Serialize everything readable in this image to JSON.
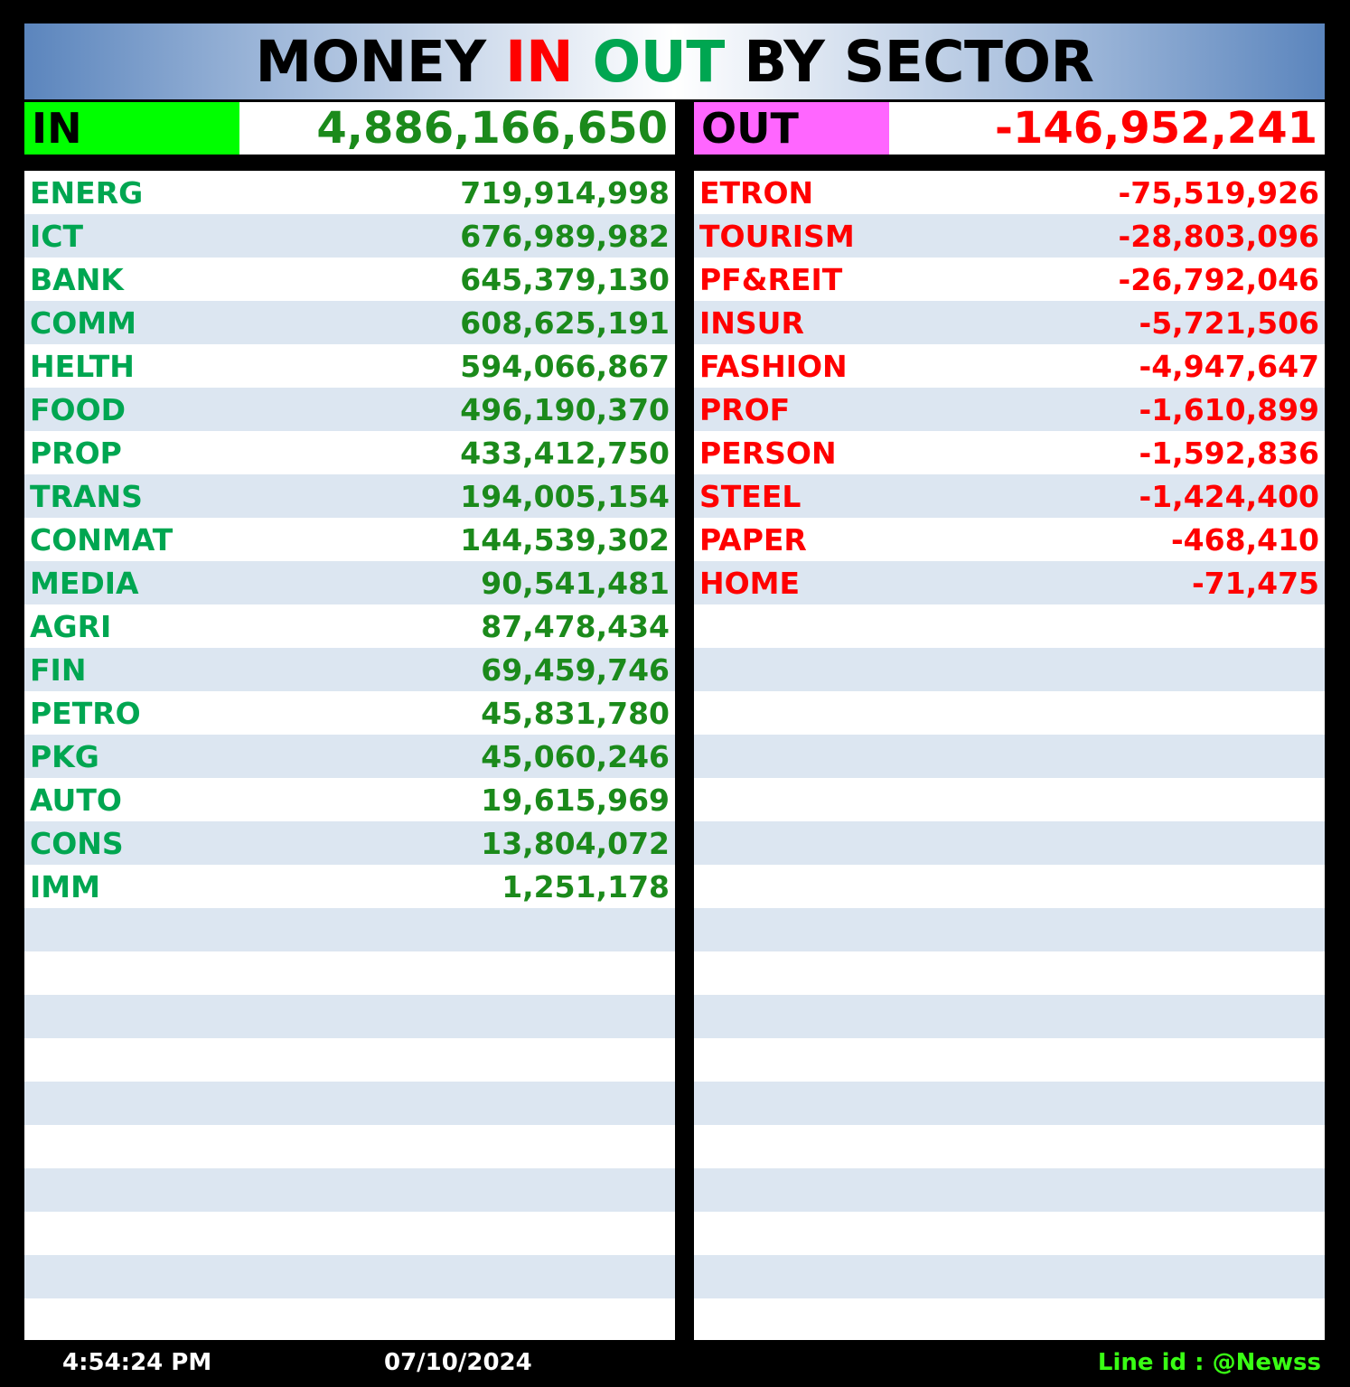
{
  "title": {
    "part1": "MONEY ",
    "part2": "IN",
    "part3": " ",
    "part4": "OUT",
    "part5": " BY SECTOR"
  },
  "colors": {
    "in_accent": "#00ff00",
    "out_accent": "#ff66ff",
    "in_text": "#00a651",
    "out_text": "#ff0000",
    "row_stripe": "#dce6f1"
  },
  "totals": {
    "in_label": "IN",
    "in_value": "4,886,166,650",
    "out_label": "OUT",
    "out_value": "-146,952,241"
  },
  "in_rows": [
    {
      "name": "ENERG",
      "value": "719,914,998"
    },
    {
      "name": "ICT",
      "value": "676,989,982"
    },
    {
      "name": "BANK",
      "value": "645,379,130"
    },
    {
      "name": "COMM",
      "value": "608,625,191"
    },
    {
      "name": "HELTH",
      "value": "594,066,867"
    },
    {
      "name": "FOOD",
      "value": "496,190,370"
    },
    {
      "name": "PROP",
      "value": "433,412,750"
    },
    {
      "name": "TRANS",
      "value": "194,005,154"
    },
    {
      "name": "CONMAT",
      "value": "144,539,302"
    },
    {
      "name": "MEDIA",
      "value": "90,541,481"
    },
    {
      "name": "AGRI",
      "value": "87,478,434"
    },
    {
      "name": "FIN",
      "value": "69,459,746"
    },
    {
      "name": "PETRO",
      "value": "45,831,780"
    },
    {
      "name": "PKG",
      "value": "45,060,246"
    },
    {
      "name": "AUTO",
      "value": "19,615,969"
    },
    {
      "name": "CONS",
      "value": "13,804,072"
    },
    {
      "name": "IMM",
      "value": "1,251,178"
    },
    {
      "name": "",
      "value": ""
    },
    {
      "name": "",
      "value": ""
    },
    {
      "name": "",
      "value": ""
    },
    {
      "name": "",
      "value": ""
    },
    {
      "name": "",
      "value": ""
    },
    {
      "name": "",
      "value": ""
    },
    {
      "name": "",
      "value": ""
    },
    {
      "name": "",
      "value": ""
    },
    {
      "name": "",
      "value": ""
    },
    {
      "name": "",
      "value": ""
    }
  ],
  "out_rows": [
    {
      "name": "ETRON",
      "value": "-75,519,926"
    },
    {
      "name": "TOURISM",
      "value": "-28,803,096"
    },
    {
      "name": "PF&REIT",
      "value": "-26,792,046"
    },
    {
      "name": "INSUR",
      "value": "-5,721,506"
    },
    {
      "name": "FASHION",
      "value": "-4,947,647"
    },
    {
      "name": "PROF",
      "value": "-1,610,899"
    },
    {
      "name": "PERSON",
      "value": "-1,592,836"
    },
    {
      "name": "STEEL",
      "value": "-1,424,400"
    },
    {
      "name": "PAPER",
      "value": "-468,410"
    },
    {
      "name": "HOME",
      "value": "-71,475"
    },
    {
      "name": "",
      "value": ""
    },
    {
      "name": "",
      "value": ""
    },
    {
      "name": "",
      "value": ""
    },
    {
      "name": "",
      "value": ""
    },
    {
      "name": "",
      "value": ""
    },
    {
      "name": "",
      "value": ""
    },
    {
      "name": "",
      "value": ""
    },
    {
      "name": "",
      "value": ""
    },
    {
      "name": "",
      "value": ""
    },
    {
      "name": "",
      "value": ""
    },
    {
      "name": "",
      "value": ""
    },
    {
      "name": "",
      "value": ""
    },
    {
      "name": "",
      "value": ""
    },
    {
      "name": "",
      "value": ""
    },
    {
      "name": "",
      "value": ""
    },
    {
      "name": "",
      "value": ""
    },
    {
      "name": "",
      "value": ""
    }
  ],
  "footer": {
    "time": "4:54:24 PM",
    "date": "07/10/2024",
    "line_id": "Line id : @Newss"
  }
}
